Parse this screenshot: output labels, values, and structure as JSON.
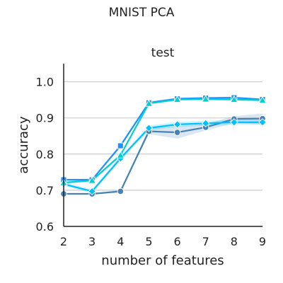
{
  "chart_data": {
    "type": "line",
    "suptitle": "MNIST PCA",
    "title": "test",
    "xlabel": "number of features",
    "ylabel": "accuracy",
    "x": [
      2,
      3,
      4,
      5,
      6,
      7,
      8,
      9
    ],
    "xticks": [
      "2",
      "3",
      "4",
      "5",
      "6",
      "7",
      "8",
      "9"
    ],
    "yticks": [
      "0.6",
      "0.7",
      "0.8",
      "0.9",
      "1.0"
    ],
    "xlim": [
      2,
      9
    ],
    "ylim": [
      0.6,
      1.05
    ],
    "grid": "horizontal",
    "series": [
      {
        "color": "#4682b4",
        "marker": "circle",
        "values": [
          0.69,
          0.69,
          0.697,
          0.863,
          0.86,
          0.874,
          0.897,
          0.898
        ],
        "band_low": [
          0.688,
          0.688,
          0.693,
          0.855,
          0.843,
          0.865,
          0.885,
          0.882
        ],
        "band_high": [
          0.692,
          0.692,
          0.701,
          0.871,
          0.877,
          0.883,
          0.905,
          0.912
        ]
      },
      {
        "color": "#1e90ff",
        "marker": "square",
        "values": [
          0.729,
          0.729,
          0.823,
          0.942,
          0.953,
          0.955,
          0.956,
          0.951
        ],
        "band_low": [
          0.726,
          0.726,
          0.818,
          0.938,
          0.95,
          0.952,
          0.953,
          0.948
        ],
        "band_high": [
          0.732,
          0.732,
          0.828,
          0.946,
          0.956,
          0.958,
          0.959,
          0.954
        ]
      },
      {
        "color": "#00bfff",
        "marker": "diamond",
        "values": [
          0.717,
          0.697,
          0.788,
          0.872,
          0.882,
          0.885,
          0.888,
          0.888
        ],
        "band_low": [
          0.712,
          0.692,
          0.782,
          0.865,
          0.875,
          0.878,
          0.881,
          0.881
        ],
        "band_high": [
          0.722,
          0.702,
          0.794,
          0.879,
          0.889,
          0.892,
          0.895,
          0.895
        ]
      },
      {
        "color": "#00ced1",
        "marker": "triangle",
        "values": [
          0.721,
          0.727,
          0.797,
          0.94,
          0.951,
          0.952,
          0.951,
          0.949
        ],
        "band_low": [
          0.718,
          0.724,
          0.793,
          0.937,
          0.948,
          0.949,
          0.948,
          0.946
        ],
        "band_high": [
          0.724,
          0.73,
          0.801,
          0.943,
          0.954,
          0.955,
          0.954,
          0.952
        ]
      }
    ]
  }
}
